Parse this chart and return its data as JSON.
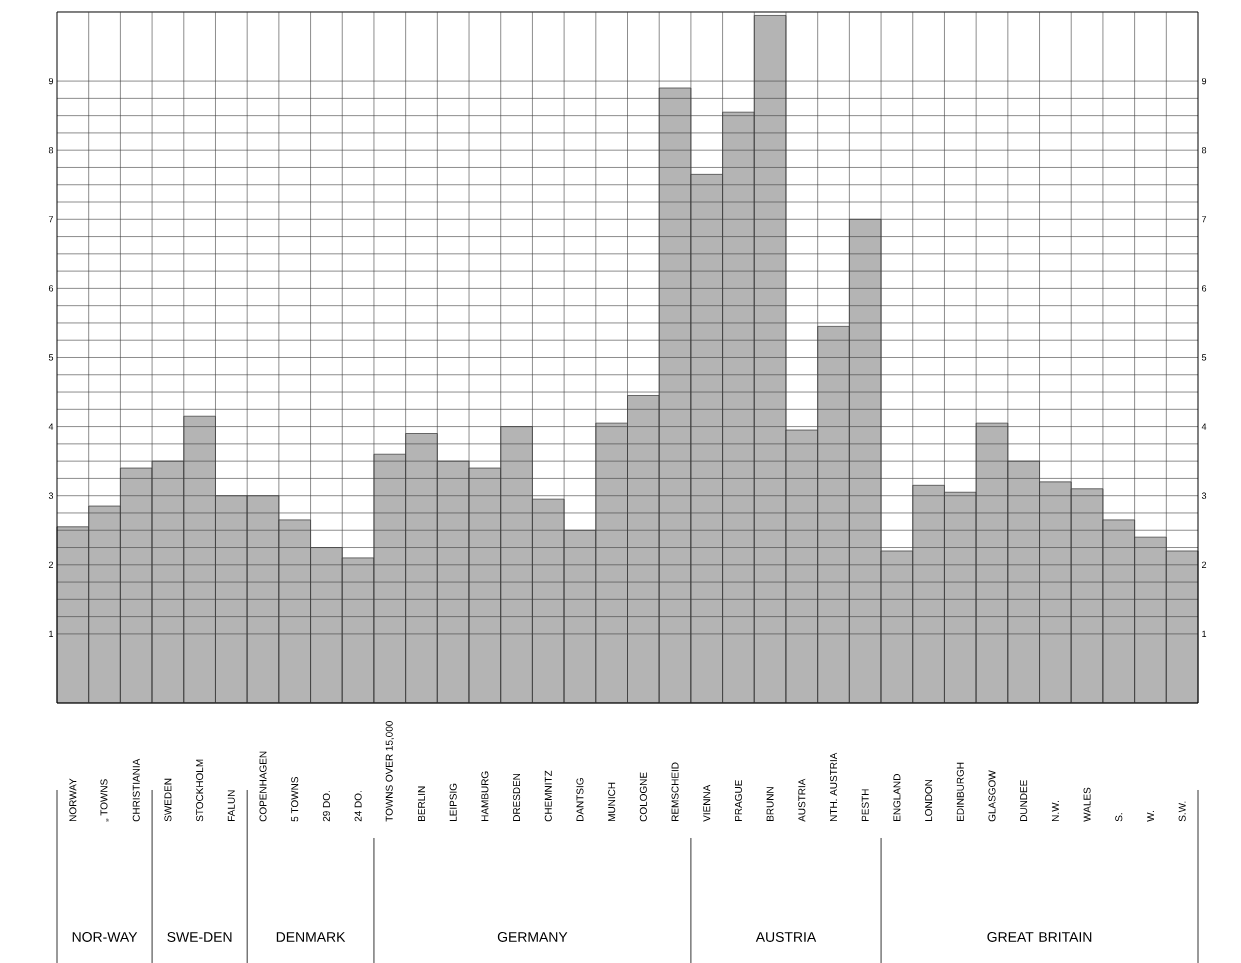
{
  "chart_data": {
    "type": "bar",
    "categories": [
      "NORWAY",
      "„ TOWNS",
      "CHRISTIANIA",
      "SWEDEN",
      "STOCKHOLM",
      "FALUN",
      "COPENHAGEN",
      "5 TOWNS",
      "29 DO.",
      "24 DO.",
      "TOWNS OVER 15,000",
      "BERLIN",
      "LEIPSIG",
      "HAMBURG",
      "DRESDEN",
      "CHEMNITZ",
      "DANTSIG",
      "MUNICH",
      "COLOGNE",
      "REMSCHEID",
      "VIENNA",
      "PRAGUE",
      "BRUNN",
      "AUSTRIA",
      "NTH. AUSTRIA",
      "PESTH",
      "ENGLAND",
      "LONDON",
      "EDINBURGH",
      "GLASGOW",
      "DUNDEE",
      "N.W.",
      "WALES",
      "S.",
      "W.",
      "S.W."
    ],
    "values": [
      2.55,
      2.85,
      3.4,
      3.5,
      4.15,
      3.0,
      3.0,
      2.65,
      2.25,
      2.1,
      3.6,
      3.9,
      3.5,
      3.4,
      4.0,
      2.95,
      2.5,
      4.05,
      4.45,
      8.9,
      7.65,
      8.55,
      9.95,
      3.95,
      5.45,
      7.0,
      2.2,
      3.15,
      3.05,
      4.05,
      3.5,
      3.2,
      3.1,
      2.65,
      2.4,
      2.2
    ],
    "color": "#b4b4b4",
    "ylim": [
      0,
      10
    ],
    "yticks": [
      1,
      2,
      3,
      4,
      5,
      6,
      7,
      8,
      9
    ],
    "y2lim": [
      0,
      10
    ],
    "y2ticks": [
      1,
      2,
      3,
      4,
      5,
      6,
      7,
      8,
      9
    ],
    "grid": true,
    "annotations": [
      "NOR-WAY",
      "SWE-DEN",
      "DENMARK",
      "GERMANY",
      "AUSTRIA",
      "GREAT BRITAIN"
    ]
  }
}
